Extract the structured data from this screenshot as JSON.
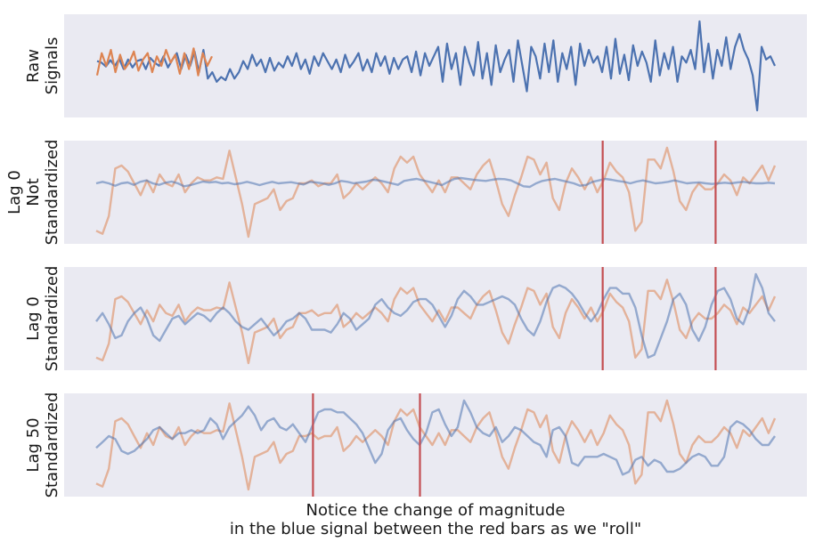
{
  "caption": {
    "line1": "Notice the change of magnitude",
    "line2": "in the blue signal between the red bars as we \"roll\""
  },
  "colors": {
    "background": "#eaeaf2",
    "blue": "#4c72b0",
    "orange": "#dd8452",
    "red": "#c44e52"
  },
  "chart_data": [
    {
      "type": "line",
      "panel": "raw",
      "ylabel_lines": [
        "Raw",
        "Signals"
      ],
      "grid": false,
      "series": [
        {
          "color": "#4c72b0",
          "values": [
            0.05,
            0.0,
            -0.12,
            0.08,
            -0.1,
            0.12,
            -0.2,
            0.1,
            -0.15,
            0.05,
            0.1,
            -0.2,
            0.15,
            0.0,
            -0.1,
            0.2,
            -0.15,
            0.1,
            0.3,
            -0.2,
            0.25,
            -0.1,
            0.35,
            -0.3,
            0.4,
            -0.5,
            -0.3,
            -0.6,
            -0.45,
            -0.55,
            -0.2,
            -0.5,
            -0.3,
            0.05,
            -0.2,
            0.25,
            -0.1,
            0.1,
            -0.3,
            0.15,
            -0.25,
            0.0,
            -0.15,
            0.2,
            -0.1,
            0.3,
            -0.2,
            0.1,
            -0.35,
            0.2,
            -0.1,
            0.3,
            0.05,
            -0.2,
            0.1,
            -0.3,
            0.25,
            -0.15,
            0.05,
            0.3,
            -0.25,
            0.1,
            -0.3,
            0.3,
            -0.1,
            0.2,
            -0.35,
            0.15,
            -0.2,
            0.1,
            0.2,
            -0.3,
            0.35,
            -0.4,
            0.3,
            -0.1,
            0.2,
            0.5,
            -0.6,
            0.6,
            -0.2,
            0.3,
            -0.7,
            0.5,
            0.0,
            -0.4,
            0.65,
            -0.5,
            0.3,
            -0.7,
            0.55,
            -0.3,
            0.1,
            0.4,
            -0.6,
            0.7,
            -0.1,
            -0.9,
            0.5,
            0.2,
            -0.5,
            0.6,
            -0.3,
            0.7,
            -0.6,
            0.3,
            -0.2,
            0.5,
            -0.7,
            0.6,
            -0.1,
            0.4,
            0.0,
            0.2,
            -0.3,
            0.5,
            -0.5,
            0.75,
            -0.35,
            0.25,
            -0.55,
            0.55,
            -0.1,
            0.35,
            0.0,
            -0.6,
            0.7,
            -0.4,
            0.3,
            -0.2,
            0.5,
            -0.6,
            0.2,
            0.0,
            0.4,
            -0.2,
            1.3,
            -0.3,
            0.6,
            -0.5,
            0.4,
            -0.1,
            0.8,
            -0.2,
            0.5,
            0.9,
            0.4,
            0.1,
            -0.4,
            -1.5,
            0.5,
            0.1,
            0.2,
            -0.1
          ]
        },
        {
          "color": "#dd8452",
          "values": [
            -0.4,
            0.3,
            -0.1,
            0.4,
            -0.3,
            0.25,
            -0.2,
            0.0,
            0.35,
            -0.25,
            0.1,
            0.3,
            -0.3,
            0.2,
            -0.1,
            0.4,
            0.0,
            0.25,
            -0.35,
            0.3,
            -0.2,
            0.45,
            -0.4,
            0.3,
            -0.1,
            0.2
          ]
        }
      ]
    },
    {
      "type": "line",
      "panel": "lag0-not-standardized",
      "ylabel_lines": [
        "Lag 0",
        "Not",
        "Standardized"
      ],
      "grid": false,
      "vlines_fraction": [
        0.725,
        0.877
      ],
      "series": [
        {
          "color": "#dd8452",
          "values": [
            -1.6,
            -1.7,
            -1.1,
            0.5,
            0.6,
            0.4,
            0.0,
            -0.4,
            0.1,
            -0.3,
            0.3,
            0.0,
            -0.1,
            0.3,
            -0.3,
            0.0,
            0.2,
            0.1,
            0.1,
            0.2,
            0.15,
            1.1,
            0.2,
            -0.7,
            -1.8,
            -0.7,
            -0.6,
            -0.5,
            -0.2,
            -0.9,
            -0.6,
            -0.5,
            0.0,
            0.0,
            0.1,
            -0.1,
            0.0,
            0.0,
            0.3,
            -0.5,
            -0.3,
            0.0,
            -0.2,
            0.0,
            0.2,
            0.0,
            -0.3,
            0.5,
            0.9,
            0.7,
            0.9,
            0.3,
            0.0,
            -0.3,
            0.1,
            -0.3,
            0.2,
            0.2,
            0.0,
            -0.2,
            0.3,
            0.6,
            0.8,
            0.1,
            -0.7,
            -1.1,
            -0.4,
            0.2,
            0.9,
            0.8,
            0.3,
            0.7,
            -0.5,
            -0.9,
            0.0,
            0.5,
            0.2,
            -0.2,
            0.2,
            -0.3,
            0.1,
            0.7,
            0.4,
            0.2,
            -0.3,
            -1.6,
            -1.3,
            0.8,
            0.8,
            0.5,
            1.2,
            0.4,
            -0.6,
            -0.9,
            -0.3,
            0.0,
            -0.2,
            -0.2,
            0.0,
            0.3,
            0.1,
            -0.4,
            0.2,
            0.0,
            0.3,
            0.6,
            0.1,
            0.6
          ]
        },
        {
          "color": "#4c72b0",
          "values": [
            0.0,
            0.05,
            0.0,
            -0.08,
            0.0,
            0.03,
            -0.05,
            0.05,
            0.1,
            0.0,
            -0.05,
            0.02,
            0.06,
            0.0,
            -0.1,
            -0.06,
            0.0,
            0.06,
            0.03,
            0.05,
            0.0,
            0.02,
            -0.03,
            0.0,
            0.05,
            0.0,
            -0.06,
            0.0,
            0.05,
            0.0,
            0.02,
            0.04,
            0.0,
            -0.04,
            0.05,
            0.03,
            0.0,
            -0.05,
            0.0,
            0.08,
            0.05,
            0.0,
            0.03,
            0.06,
            0.12,
            0.1,
            0.05,
            0.0,
            -0.05,
            0.08,
            0.12,
            0.15,
            0.1,
            0.05,
            0.0,
            -0.06,
            0.05,
            0.15,
            0.18,
            0.15,
            0.12,
            0.1,
            0.08,
            0.12,
            0.15,
            0.14,
            0.1,
            0.0,
            -0.1,
            -0.12,
            0.0,
            0.08,
            0.12,
            0.15,
            0.1,
            0.05,
            0.0,
            -0.08,
            -0.05,
            0.05,
            0.1,
            0.15,
            0.12,
            0.08,
            0.05,
            0.0,
            0.06,
            0.1,
            0.05,
            0.0,
            0.02,
            0.05,
            0.1,
            0.05,
            0.0,
            0.02,
            0.03,
            0.0,
            -0.02,
            0.0,
            0.02,
            0.0,
            0.03,
            0.05,
            0.02,
            0.0,
            0.0,
            0.02,
            0.0
          ]
        }
      ]
    },
    {
      "type": "line",
      "panel": "lag0-standardized",
      "ylabel_lines": [
        "Lag 0",
        "Standardized"
      ],
      "grid": false,
      "vlines_fraction": [
        0.725,
        0.877
      ],
      "series": [
        {
          "color": "#dd8452",
          "values": [
            -1.6,
            -1.7,
            -1.1,
            0.5,
            0.6,
            0.4,
            0.0,
            -0.4,
            0.1,
            -0.3,
            0.3,
            0.0,
            -0.1,
            0.3,
            -0.3,
            0.0,
            0.2,
            0.1,
            0.1,
            0.2,
            0.15,
            1.1,
            0.2,
            -0.7,
            -1.8,
            -0.7,
            -0.6,
            -0.5,
            -0.2,
            -0.9,
            -0.6,
            -0.5,
            0.0,
            0.0,
            0.1,
            -0.1,
            0.0,
            0.0,
            0.3,
            -0.5,
            -0.3,
            0.0,
            -0.2,
            0.0,
            0.2,
            0.0,
            -0.3,
            0.5,
            0.9,
            0.7,
            0.9,
            0.3,
            0.0,
            -0.3,
            0.1,
            -0.3,
            0.2,
            0.2,
            0.0,
            -0.2,
            0.3,
            0.6,
            0.8,
            0.1,
            -0.7,
            -1.1,
            -0.4,
            0.2,
            0.9,
            0.8,
            0.3,
            0.7,
            -0.5,
            -0.9,
            0.0,
            0.5,
            0.2,
            -0.2,
            0.2,
            -0.3,
            0.1,
            0.7,
            0.4,
            0.2,
            -0.3,
            -1.6,
            -1.3,
            0.8,
            0.8,
            0.5,
            1.2,
            0.4,
            -0.6,
            -0.9,
            -0.3,
            0.0,
            -0.2,
            -0.2,
            0.0,
            0.3,
            0.1,
            -0.4,
            0.2,
            0.0,
            0.3,
            0.6,
            0.1,
            0.6
          ]
        },
        {
          "color": "#4c72b0",
          "values": [
            -0.3,
            0.0,
            -0.4,
            -0.9,
            -0.8,
            -0.3,
            0.0,
            0.2,
            -0.2,
            -0.8,
            -1.0,
            -0.6,
            -0.2,
            -0.1,
            -0.4,
            -0.2,
            0.0,
            -0.1,
            -0.3,
            0.0,
            0.2,
            0.0,
            -0.3,
            -0.5,
            -0.6,
            -0.4,
            -0.2,
            -0.5,
            -0.8,
            -0.6,
            -0.3,
            -0.2,
            0.0,
            -0.2,
            -0.6,
            -0.6,
            -0.6,
            -0.7,
            -0.4,
            0.0,
            -0.2,
            -0.6,
            -0.4,
            -0.2,
            0.3,
            0.5,
            0.2,
            0.0,
            -0.1,
            0.1,
            0.4,
            0.5,
            0.5,
            0.3,
            -0.1,
            -0.5,
            -0.1,
            0.5,
            0.8,
            0.6,
            0.3,
            0.3,
            0.4,
            0.5,
            0.6,
            0.5,
            0.3,
            -0.2,
            -0.6,
            -0.8,
            -0.3,
            0.4,
            0.9,
            1.0,
            0.9,
            0.7,
            0.4,
            0.0,
            -0.3,
            0.0,
            0.5,
            0.9,
            0.9,
            0.7,
            0.7,
            0.2,
            -0.8,
            -1.6,
            -1.5,
            -0.9,
            -0.3,
            0.5,
            0.7,
            0.3,
            -0.6,
            -1.0,
            -0.5,
            0.3,
            0.8,
            0.9,
            0.5,
            -0.2,
            -0.4,
            0.2,
            1.4,
            0.9,
            0.0,
            -0.3
          ]
        }
      ]
    },
    {
      "type": "line",
      "panel": "lag50-standardized",
      "ylabel_lines": [
        "Lag 50",
        "Standardized"
      ],
      "grid": false,
      "vlines_fraction": [
        0.335,
        0.479
      ],
      "series": [
        {
          "color": "#dd8452",
          "values": [
            -1.6,
            -1.7,
            -1.1,
            0.5,
            0.6,
            0.4,
            0.0,
            -0.4,
            0.1,
            -0.3,
            0.3,
            0.0,
            -0.1,
            0.3,
            -0.3,
            0.0,
            0.2,
            0.1,
            0.1,
            0.2,
            0.15,
            1.1,
            0.2,
            -0.7,
            -1.8,
            -0.7,
            -0.6,
            -0.5,
            -0.2,
            -0.9,
            -0.6,
            -0.5,
            0.0,
            0.0,
            0.1,
            -0.1,
            0.0,
            0.0,
            0.3,
            -0.5,
            -0.3,
            0.0,
            -0.2,
            0.0,
            0.2,
            0.0,
            -0.3,
            0.5,
            0.9,
            0.7,
            0.9,
            0.3,
            0.0,
            -0.3,
            0.1,
            -0.3,
            0.2,
            0.2,
            0.0,
            -0.2,
            0.3,
            0.6,
            0.8,
            0.1,
            -0.7,
            -1.1,
            -0.4,
            0.2,
            0.9,
            0.8,
            0.3,
            0.7,
            -0.5,
            -0.9,
            0.0,
            0.5,
            0.2,
            -0.2,
            0.2,
            -0.3,
            0.1,
            0.7,
            0.4,
            0.2,
            -0.3,
            -1.6,
            -1.3,
            0.8,
            0.8,
            0.5,
            1.2,
            0.4,
            -0.6,
            -0.9,
            -0.3,
            0.0,
            -0.2,
            -0.2,
            0.0,
            0.3,
            0.1,
            -0.4,
            0.2,
            0.0,
            0.3,
            0.6,
            0.1,
            0.6
          ]
        },
        {
          "color": "#4c72b0",
          "values": [
            -0.4,
            -0.2,
            0.0,
            -0.1,
            -0.5,
            -0.6,
            -0.5,
            -0.3,
            -0.1,
            0.2,
            0.3,
            0.1,
            -0.1,
            0.1,
            0.1,
            0.2,
            0.1,
            0.2,
            0.6,
            0.4,
            -0.1,
            0.3,
            0.5,
            0.7,
            1.0,
            0.7,
            0.2,
            0.5,
            0.6,
            0.3,
            0.2,
            0.4,
            0.1,
            -0.2,
            0.3,
            0.8,
            0.9,
            0.9,
            0.8,
            0.8,
            0.6,
            0.4,
            0.1,
            -0.4,
            -0.9,
            -0.6,
            0.2,
            0.5,
            0.6,
            0.2,
            -0.1,
            -0.3,
            0.1,
            0.8,
            0.9,
            0.4,
            0.0,
            0.3,
            1.2,
            0.8,
            0.3,
            0.1,
            0.0,
            0.3,
            -0.2,
            0.0,
            0.3,
            0.2,
            0.0,
            -0.2,
            -0.3,
            -0.7,
            0.2,
            0.3,
            0.0,
            -0.9,
            -1.0,
            -0.7,
            -0.7,
            -0.7,
            -0.6,
            -0.7,
            -0.8,
            -1.3,
            -1.2,
            -0.8,
            -0.7,
            -1.0,
            -0.8,
            -0.9,
            -1.2,
            -1.2,
            -1.1,
            -0.9,
            -0.7,
            -0.6,
            -0.7,
            -1.0,
            -1.0,
            -0.7,
            0.3,
            0.5,
            0.4,
            0.2,
            -0.1,
            -0.3,
            -0.3,
            0.0
          ]
        }
      ]
    }
  ]
}
